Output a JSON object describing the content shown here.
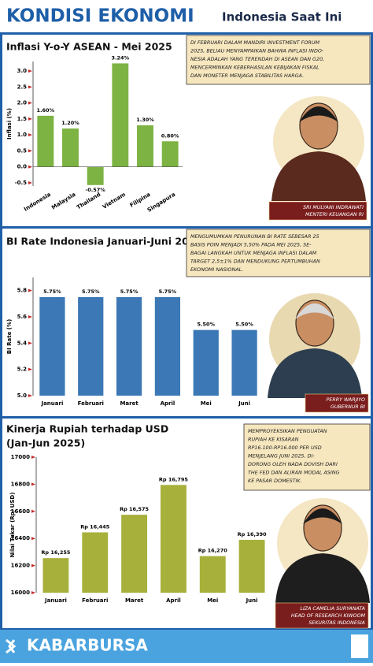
{
  "header": {
    "title": "KONDISI EKONOMI",
    "subtitle": "Indonesia Saat Ini"
  },
  "chart_data": [
    {
      "type": "bar",
      "title": "Inflasi Y-o-Y ASEAN - Mei 2025",
      "ylabel": "Inflasi (%)",
      "categories": [
        "Indonesia",
        "Malaysia",
        "Thailand",
        "Vietnam",
        "Filipina",
        "Singapura"
      ],
      "values": [
        1.6,
        1.2,
        -0.57,
        3.24,
        1.3,
        0.8
      ],
      "value_labels": [
        "1.60%",
        "1.20%",
        "-0.57%",
        "3.24%",
        "1.30%",
        "0.80%"
      ],
      "color": "#7cb342",
      "ylim": [
        -0.6,
        3.3
      ],
      "yticks": [
        -0.5,
        {
          "value": 0,
          "label": "0.0"
        },
        0.5,
        {
          "value": 1,
          "label": "1.0"
        },
        1.5,
        {
          "value": 2,
          "label": "2.0"
        },
        2.5,
        {
          "value": 3,
          "label": "3.0"
        }
      ],
      "annotation": [
        "DI FEBRUARI DALAM MANDIRI INVESTMENT FORUM",
        "2025, BELIAU MENYAMPAIKAN BAHWA INFLASI INDO-",
        "NESIA ADALAH YANG TERENDAH DI ASEAN DAN G20,",
        "MENCERMINKAN KEBERHASILAN KEBIJAKAN FISKAL",
        "DAN MONETER MENJAGA STABILITAS HARGA."
      ],
      "caption": [
        "SRI MULYANI INDRAWATI",
        "MENTERI KEUANGAN RI"
      ]
    },
    {
      "type": "bar",
      "title": "BI Rate Indonesia Januari-Juni 2025",
      "ylabel": "BI Rate (%)",
      "categories": [
        "Januari",
        "Februari",
        "Maret",
        "April",
        "Mei",
        "Juni"
      ],
      "values": [
        5.75,
        5.75,
        5.75,
        5.75,
        5.5,
        5.5
      ],
      "value_labels": [
        "5.75%",
        "5.75%",
        "5.75%",
        "5.75%",
        "5.50%",
        "5.50%"
      ],
      "color": "#3b78b5",
      "ylim": [
        5.0,
        5.9
      ],
      "yticks": [
        {
          "value": 5,
          "label": "5.0"
        },
        5.2,
        5.4,
        5.6,
        5.8
      ],
      "annotation": [
        "MENGUMUMKAN PENURUNAN BI RATE SEBESAR 25",
        "BASIS POIN MENJADI 5,50% PADA MEI 2025, SE-",
        "BAGAI LANGKAH UNTUK MENJAGA INFLASI DALAM",
        "TARGET 2,5±1% DAN MENDUKUNG PERTUMBUHAN",
        "EKONOMI NASIONAL."
      ],
      "caption": [
        "PERRY WARJIYO",
        "GUBERNUR BI"
      ]
    },
    {
      "type": "bar",
      "title": "Kinerja Rupiah terhadap USD",
      "subtitle": "(Jan-Jun 2025)",
      "ylabel": "Nilai Tukar (Rp/ USD)",
      "categories": [
        "Januari",
        "Februari",
        "Maret",
        "April",
        "Mei",
        "Juni"
      ],
      "values": [
        16255,
        16445,
        16575,
        16795,
        16270,
        16390
      ],
      "value_labels": [
        "Rp 16,255",
        "Rp 16,445",
        "Rp 16,575",
        "Rp 16,795",
        "Rp 16,270",
        "Rp 16,390"
      ],
      "color": "#a8b03c",
      "ylim": [
        16000,
        17000
      ],
      "yticks": [
        16000,
        16200,
        16400,
        16600,
        16800,
        17000
      ],
      "annotation": [
        "MEMPROYEKSIKAN PENGUATAN",
        "RUPIAH KE KISARAN",
        "RP16.100-RP16.000 PER USD",
        "MENJELANG JUNI 2025, DI-",
        "DORONG OLEH NADA DOVISH DARI",
        "THE FED DAN ALIRAN MODAL ASING",
        "KE PASAR DOMESTIK."
      ],
      "caption": [
        "LIZA CAMELIA SURYANATA",
        "HEAD OF RESEARCH KIWOOM",
        "SEKURITAS INDONESIA"
      ]
    }
  ],
  "footer": {
    "brand": "KABARBURSA"
  }
}
